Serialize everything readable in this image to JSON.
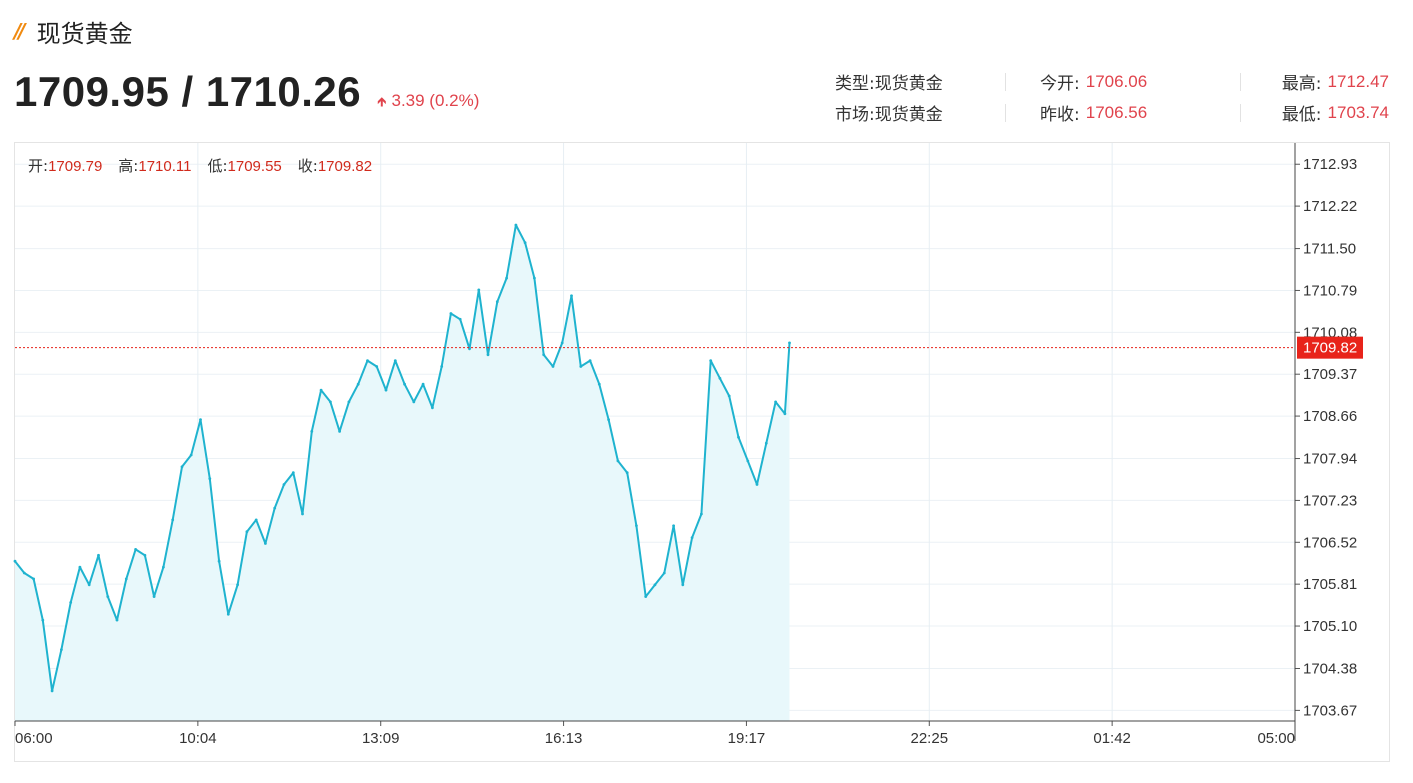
{
  "header": {
    "title_icon": "double-slash-icon",
    "title": "现货黄金",
    "price": "1709.95 / 1710.26",
    "change": "3.39 (0.2%)",
    "change_direction": "up"
  },
  "info": {
    "type_label": "类型:",
    "type_value": "现货黄金",
    "market_label": "市场:",
    "market_value": "现货黄金",
    "open_label": "今开:",
    "open_value": "1706.06",
    "prev_close_label": "昨收:",
    "prev_close_value": "1706.56",
    "high_label": "最高:",
    "high_value": "1712.47",
    "low_label": "最低:",
    "low_value": "1703.74"
  },
  "ohlc": {
    "open_label": "开:",
    "open_value": "1709.79",
    "high_label": "高:",
    "high_value": "1710.11",
    "low_label": "低:",
    "low_value": "1709.55",
    "close_label": "收:",
    "close_value": "1709.82"
  },
  "colors": {
    "line": "#1fb3cf",
    "area": "#e8f8fb",
    "current_price": "#e8231a",
    "up": "#e0434c"
  },
  "chart_data": {
    "type": "area",
    "x_ticks": [
      "06:00",
      "10:04",
      "13:09",
      "16:13",
      "19:17",
      "22:25",
      "01:42",
      "05:00"
    ],
    "y_ticks": [
      "1712.93",
      "1712.22",
      "1711.50",
      "1710.79",
      "1710.08",
      "1709.37",
      "1708.66",
      "1707.94",
      "1707.23",
      "1706.52",
      "1705.81",
      "1705.10",
      "1704.38",
      "1703.67"
    ],
    "ylim": [
      1703.49,
      1713.29
    ],
    "x_range_minutes": [
      0,
      1380
    ],
    "current_price": 1709.82,
    "current_price_label": "1709.82",
    "grid": true,
    "series": [
      {
        "x": [
          0,
          10,
          20,
          30,
          40,
          50,
          60,
          70,
          80,
          90,
          100,
          110,
          120,
          130,
          140,
          150,
          160,
          170,
          180,
          190,
          200,
          210,
          220,
          230,
          240,
          250,
          260,
          270,
          280,
          290,
          300,
          310,
          320,
          330,
          340,
          350,
          360,
          370,
          380,
          390,
          400,
          410,
          420,
          430,
          440,
          450,
          460,
          470,
          480,
          490,
          500,
          510,
          520,
          530,
          540,
          550,
          560,
          570,
          580,
          590,
          600,
          610,
          620,
          630,
          640,
          650,
          660,
          670,
          680,
          690,
          700,
          710,
          720,
          730,
          740,
          750,
          760,
          770,
          780,
          790,
          800,
          810,
          820,
          830,
          835
        ],
        "values": [
          1706.2,
          1706.0,
          1705.9,
          1705.2,
          1704.0,
          1704.7,
          1705.5,
          1706.1,
          1705.8,
          1706.3,
          1705.6,
          1705.2,
          1705.9,
          1706.4,
          1706.3,
          1705.6,
          1706.1,
          1706.9,
          1707.8,
          1708.0,
          1708.6,
          1707.6,
          1706.2,
          1705.3,
          1705.8,
          1706.7,
          1706.9,
          1706.5,
          1707.1,
          1707.5,
          1707.7,
          1707.0,
          1708.4,
          1709.1,
          1708.9,
          1708.4,
          1708.9,
          1709.2,
          1709.6,
          1709.5,
          1709.1,
          1709.6,
          1709.2,
          1708.9,
          1709.2,
          1708.8,
          1709.5,
          1710.4,
          1710.3,
          1709.8,
          1710.8,
          1709.7,
          1710.6,
          1711.0,
          1711.9,
          1711.6,
          1711.0,
          1709.7,
          1709.5,
          1709.9,
          1710.7,
          1709.5,
          1709.6,
          1709.2,
          1708.6,
          1707.9,
          1707.7,
          1706.8,
          1705.6,
          1705.8,
          1706.0,
          1706.8,
          1705.8,
          1706.6,
          1707.0,
          1709.6,
          1709.3,
          1709.0,
          1708.3,
          1707.9,
          1707.5,
          1708.2,
          1708.9,
          1708.7,
          1709.9
        ]
      }
    ]
  }
}
